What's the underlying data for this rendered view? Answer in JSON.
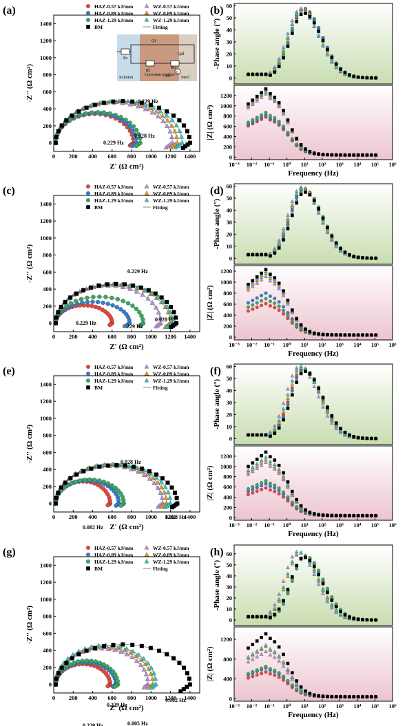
{
  "colors": {
    "HAZ-0.57": "#e8453c",
    "HAZ-0.89": "#2f7fd0",
    "HAZ-1.29": "#3aa860",
    "WZ-0.57": "#b48ee0",
    "WZ-0.89": "#e49a1a",
    "WZ-1.29": "#2cc7c7",
    "BM": "#000000",
    "phase_bg_top": "#ffffff",
    "phase_bg_bottom": "#c9ddb0",
    "mod_bg_top": "#ffffff",
    "mod_bg_bottom": "#ecc4cf"
  },
  "legend": {
    "HAZ-0.57": "HAZ-0.57 kJ/mm",
    "HAZ-0.89": "HAZ-0.89 kJ/mm",
    "HAZ-1.29": "HAZ-1.29 kJ/mm",
    "WZ-0.57": "WZ-0.57 kJ/mm",
    "WZ-0.89": "WZ-0.89 kJ/mm",
    "WZ-1.29": "WZ-1.29 kJ/mm",
    "BM": "BM",
    "fit": "Fitting"
  },
  "axes": {
    "nyquist_x": "Z' (Ω cm²)",
    "nyquist_y": "-Z'' (Ω cm²)",
    "phase_y": "-Phase angle (°)",
    "mod_y": "|Z| (Ω cm²)",
    "freq_x": "Frequency (Hz)"
  },
  "inset": {
    "components": [
      "Rs",
      "Qf",
      "Qdl",
      "Rf",
      "Rct",
      "RL",
      "L"
    ],
    "regions": [
      "Solution",
      "Corrosion product",
      "Steel"
    ]
  },
  "chart_data": [
    {
      "panel": "(a)",
      "type": "scatter",
      "xlabel": "Z' (Ω cm²)",
      "ylabel": "-Z'' (Ω cm²)",
      "xlim": [
        0,
        1500
      ],
      "ylim": [
        -100,
        1500
      ],
      "xticks": [
        0,
        200,
        400,
        600,
        800,
        1000,
        1200,
        1400
      ],
      "yticks": [
        0,
        200,
        400,
        600,
        800,
        1000,
        1200,
        1400
      ],
      "series": [
        {
          "name": "HAZ-0.57 kJ/mm",
          "R": 800,
          "H": 340,
          "tail": 60
        },
        {
          "name": "HAZ-0.89 kJ/mm",
          "R": 830,
          "H": 350,
          "tail": 70
        },
        {
          "name": "HAZ-1.29 kJ/mm",
          "R": 870,
          "H": 360,
          "tail": 70
        },
        {
          "name": "WZ-0.57 kJ/mm",
          "R": 1200,
          "H": 470,
          "tail": 110
        },
        {
          "name": "WZ-0.89 kJ/mm",
          "R": 1250,
          "H": 480,
          "tail": 110
        },
        {
          "name": "WZ-1.29 kJ/mm",
          "R": 1300,
          "H": 490,
          "tail": 110
        },
        {
          "name": "BM",
          "R": 1380,
          "H": 490,
          "tail": 120
        }
      ],
      "annotations": [
        "0.229 Hz",
        "0.229 Hz",
        "0.028 Hz"
      ]
    },
    {
      "panel": "(b)",
      "type": "scatter",
      "phase": {
        "ylabel": "-Phase angle (°)",
        "ylim": [
          -5,
          62
        ],
        "yticks": [
          0,
          10,
          20,
          30,
          40,
          50,
          60
        ],
        "series": [
          {
            "name": "HAZ-0.57 kJ/mm",
            "peak": 57,
            "peak_log_f": 0.95
          },
          {
            "name": "HAZ-0.89 kJ/mm",
            "peak": 58,
            "peak_log_f": 0.95
          },
          {
            "name": "HAZ-1.29 kJ/mm",
            "peak": 57,
            "peak_log_f": 0.9
          },
          {
            "name": "WZ-0.57 kJ/mm",
            "peak": 57,
            "peak_log_f": 0.75
          },
          {
            "name": "WZ-0.89 kJ/mm",
            "peak": 58,
            "peak_log_f": 0.85
          },
          {
            "name": "WZ-1.29 kJ/mm",
            "peak": 56,
            "peak_log_f": 0.8
          },
          {
            "name": "BM",
            "peak": 54,
            "peak_log_f": 0.95
          }
        ]
      },
      "modulus": {
        "ylabel": "|Z| (Ω cm²)",
        "ylim": [
          -50,
          1400
        ],
        "yticks": [
          0,
          200,
          400,
          600,
          800,
          1000,
          1200
        ],
        "xlabel": "Frequency (Hz)",
        "xlim_log": [
          -3,
          6
        ],
        "xticks": [
          "10⁻³",
          "10⁻²",
          "10⁻¹",
          "10⁰",
          "10¹",
          "10²",
          "10³",
          "10⁴",
          "10⁵",
          "10⁶"
        ],
        "series": [
          {
            "name": "HAZ-0.57 kJ/mm",
            "Zmax": 780
          },
          {
            "name": "HAZ-0.89 kJ/mm",
            "Zmax": 820
          },
          {
            "name": "HAZ-1.29 kJ/mm",
            "Zmax": 870
          },
          {
            "name": "WZ-0.57 kJ/mm",
            "Zmax": 1230
          },
          {
            "name": "WZ-0.89 kJ/mm",
            "Zmax": 1270
          },
          {
            "name": "WZ-1.29 kJ/mm",
            "Zmax": 1300
          },
          {
            "name": "BM",
            "Zmax": 1330
          }
        ]
      }
    },
    {
      "panel": "(c)",
      "type": "scatter",
      "xlabel": "Z' (Ω cm²)",
      "ylabel": "-Z'' (Ω cm²)",
      "xlim": [
        0,
        1500
      ],
      "ylim": [
        -100,
        1500
      ],
      "xticks": [
        0,
        200,
        400,
        600,
        800,
        1000,
        1200,
        1400
      ],
      "yticks": [
        0,
        200,
        400,
        600,
        800,
        1000,
        1200,
        1400
      ],
      "series": [
        {
          "name": "HAZ-0.57 kJ/mm",
          "R": 580,
          "H": 210,
          "tail": 40
        },
        {
          "name": "HAZ-0.89 kJ/mm",
          "R": 760,
          "H": 250,
          "tail": 50
        },
        {
          "name": "HAZ-1.29 kJ/mm",
          "R": 900,
          "H": 310,
          "tail": 60
        },
        {
          "name": "WZ-0.57 kJ/mm",
          "R": 1080,
          "H": 440,
          "tail": 80
        },
        {
          "name": "WZ-0.89 kJ/mm",
          "R": 1180,
          "H": 450,
          "tail": 90
        },
        {
          "name": "WZ-1.29 kJ/mm",
          "R": 1200,
          "H": 460,
          "tail": 90
        },
        {
          "name": "BM",
          "R": 1240,
          "H": 460,
          "tail": 90
        }
      ],
      "annotations": [
        "0.229 Hz",
        "0.229 Hz",
        "0.229 Hz",
        "0.028 Hz"
      ]
    },
    {
      "panel": "(d)",
      "type": "scatter",
      "phase": {
        "ylabel": "-Phase angle (°)",
        "ylim": [
          -5,
          62
        ],
        "yticks": [
          0,
          10,
          20,
          30,
          40,
          50,
          60
        ],
        "series": [
          {
            "name": "HAZ-0.57 kJ/mm",
            "peak": 58,
            "peak_log_f": 0.9
          },
          {
            "name": "HAZ-0.89 kJ/mm",
            "peak": 58,
            "peak_log_f": 0.95
          },
          {
            "name": "HAZ-1.29 kJ/mm",
            "peak": 57,
            "peak_log_f": 1.0
          },
          {
            "name": "WZ-0.57 kJ/mm",
            "peak": 59,
            "peak_log_f": 0.8
          },
          {
            "name": "WZ-0.89 kJ/mm",
            "peak": 59,
            "peak_log_f": 0.9
          },
          {
            "name": "WZ-1.29 kJ/mm",
            "peak": 58,
            "peak_log_f": 0.85
          },
          {
            "name": "BM",
            "peak": 55,
            "peak_log_f": 1.0
          }
        ]
      },
      "modulus": {
        "ylabel": "|Z| (Ω cm²)",
        "ylim": [
          -50,
          1300
        ],
        "yticks": [
          0,
          200,
          400,
          600,
          800,
          1000,
          1200
        ],
        "xlabel": "Frequency (Hz)",
        "xlim_log": [
          -3,
          6
        ],
        "xticks": [
          "10⁻³",
          "10⁻²",
          "10⁻¹",
          "10⁰",
          "10¹",
          "10²",
          "10³",
          "10⁴",
          "10⁵",
          "10⁶"
        ],
        "series": [
          {
            "name": "HAZ-0.57 kJ/mm",
            "Zmax": 610
          },
          {
            "name": "HAZ-0.89 kJ/mm",
            "Zmax": 800
          },
          {
            "name": "HAZ-1.29 kJ/mm",
            "Zmax": 700
          },
          {
            "name": "WZ-0.57 kJ/mm",
            "Zmax": 1100
          },
          {
            "name": "WZ-0.89 kJ/mm",
            "Zmax": 1150
          },
          {
            "name": "WZ-1.29 kJ/mm",
            "Zmax": 1190
          },
          {
            "name": "BM",
            "Zmax": 1230
          }
        ]
      }
    },
    {
      "panel": "(e)",
      "type": "scatter",
      "xlabel": "Z' (Ω cm²)",
      "ylabel": "-Z'' (Ω cm²)",
      "xlim": [
        0,
        1500
      ],
      "ylim": [
        -100,
        1500
      ],
      "xticks": [
        0,
        200,
        400,
        600,
        800,
        1000,
        1200,
        1400
      ],
      "yticks": [
        0,
        200,
        400,
        600,
        800,
        1000,
        1200,
        1400
      ],
      "series": [
        {
          "name": "HAZ-0.57 kJ/mm",
          "R": 560,
          "H": 260,
          "tail": 40
        },
        {
          "name": "HAZ-0.89 kJ/mm",
          "R": 650,
          "H": 270,
          "tail": 50
        },
        {
          "name": "HAZ-1.29 kJ/mm",
          "R": 700,
          "H": 280,
          "tail": 50
        },
        {
          "name": "WZ-0.57 kJ/mm",
          "R": 1100,
          "H": 440,
          "tail": 80
        },
        {
          "name": "WZ-0.89 kJ/mm",
          "R": 1140,
          "H": 450,
          "tail": 80
        },
        {
          "name": "WZ-1.29 kJ/mm",
          "R": 1180,
          "H": 460,
          "tail": 90
        },
        {
          "name": "BM",
          "R": 1250,
          "H": 450,
          "tail": 90
        }
      ],
      "annotations": [
        "0.028 Hz",
        "0.082 Hz",
        "0.028 Hz"
      ]
    },
    {
      "panel": "(f)",
      "type": "scatter",
      "phase": {
        "ylabel": "-Phase angle (°)",
        "ylim": [
          -5,
          62
        ],
        "yticks": [
          0,
          10,
          20,
          30,
          40,
          50,
          60
        ],
        "series": [
          {
            "name": "HAZ-0.57 kJ/mm",
            "peak": 58,
            "peak_log_f": 0.9
          },
          {
            "name": "HAZ-0.89 kJ/mm",
            "peak": 58,
            "peak_log_f": 0.95
          },
          {
            "name": "HAZ-1.29 kJ/mm",
            "peak": 57,
            "peak_log_f": 1.0
          },
          {
            "name": "WZ-0.57 kJ/mm",
            "peak": 60,
            "peak_log_f": 0.7
          },
          {
            "name": "WZ-0.89 kJ/mm",
            "peak": 59,
            "peak_log_f": 0.85
          },
          {
            "name": "WZ-1.29 kJ/mm",
            "peak": 60,
            "peak_log_f": 0.8
          },
          {
            "name": "BM",
            "peak": 56,
            "peak_log_f": 1.0
          }
        ]
      },
      "modulus": {
        "ylabel": "|Z| (Ω cm²)",
        "ylim": [
          -50,
          1400
        ],
        "yticks": [
          0,
          200,
          400,
          600,
          800,
          1000,
          1200
        ],
        "xlabel": "Frequency (Hz)",
        "xlim_log": [
          -3,
          6
        ],
        "xticks": [
          "10⁻³",
          "10⁻²",
          "10⁻¹",
          "10⁰",
          "10¹",
          "10²",
          "10³",
          "10⁴",
          "10⁵",
          "10⁶"
        ],
        "series": [
          {
            "name": "HAZ-0.57 kJ/mm",
            "Zmax": 580
          },
          {
            "name": "HAZ-0.89 kJ/mm",
            "Zmax": 660
          },
          {
            "name": "HAZ-1.29 kJ/mm",
            "Zmax": 720
          },
          {
            "name": "WZ-0.57 kJ/mm",
            "Zmax": 1080
          },
          {
            "name": "WZ-0.89 kJ/mm",
            "Zmax": 1130
          },
          {
            "name": "WZ-1.29 kJ/mm",
            "Zmax": 1180
          },
          {
            "name": "BM",
            "Zmax": 1280
          }
        ]
      }
    },
    {
      "panel": "(g)",
      "type": "scatter",
      "xlabel": "Z' (Ω cm²)",
      "ylabel": "-Z'' (Ω cm²)",
      "xlim": [
        0,
        1500
      ],
      "ylim": [
        -100,
        1500
      ],
      "xticks": [
        0,
        200,
        400,
        600,
        800,
        1000,
        1200,
        1400
      ],
      "yticks": [
        0,
        200,
        400,
        600,
        800,
        1000,
        1200,
        1400
      ],
      "series": [
        {
          "name": "HAZ-0.57 kJ/mm",
          "R": 560,
          "H": 240,
          "tail": 40
        },
        {
          "name": "HAZ-0.89 kJ/mm",
          "R": 620,
          "H": 260,
          "tail": 50
        },
        {
          "name": "HAZ-1.29 kJ/mm",
          "R": 640,
          "H": 280,
          "tail": 50
        },
        {
          "name": "WZ-0.57 kJ/mm",
          "R": 950,
          "H": 420,
          "tail": 70
        },
        {
          "name": "WZ-0.89 kJ/mm",
          "R": 1000,
          "H": 440,
          "tail": 80
        },
        {
          "name": "WZ-1.29 kJ/mm",
          "R": 1030,
          "H": 460,
          "tail": 80
        },
        {
          "name": "BM",
          "R": 1380,
          "H": 470,
          "tail": 160
        }
      ],
      "annotations": [
        "0.229 Hz",
        "0.229 Hz",
        "0.005 Hz",
        "0.082 Hz"
      ]
    },
    {
      "panel": "(h)",
      "type": "scatter",
      "phase": {
        "ylabel": "-Phase angle (°)",
        "ylim": [
          -5,
          68
        ],
        "yticks": [
          0,
          10,
          20,
          30,
          40,
          50,
          60
        ],
        "series": [
          {
            "name": "HAZ-0.57 kJ/mm",
            "peak": 58,
            "peak_log_f": 1.0
          },
          {
            "name": "HAZ-0.89 kJ/mm",
            "peak": 58,
            "peak_log_f": 1.0
          },
          {
            "name": "HAZ-1.29 kJ/mm",
            "peak": 58,
            "peak_log_f": 1.05
          },
          {
            "name": "WZ-0.57 kJ/mm",
            "peak": 62,
            "peak_log_f": 0.6
          },
          {
            "name": "WZ-0.89 kJ/mm",
            "peak": 61,
            "peak_log_f": 0.75
          },
          {
            "name": "WZ-1.29 kJ/mm",
            "peak": 61,
            "peak_log_f": 0.7
          },
          {
            "name": "BM",
            "peak": 57,
            "peak_log_f": 0.95
          }
        ]
      },
      "modulus": {
        "ylabel": "|Z| (Ω cm²)",
        "ylim": [
          -50,
          1450
        ],
        "yticks": [
          0,
          400,
          800,
          1200
        ],
        "xlabel": "Frequency (Hz)",
        "xlim_log": [
          -3,
          6
        ],
        "xticks": [
          "10⁻³",
          "10⁻²",
          "10⁻¹",
          "10⁰",
          "10¹",
          "10²",
          "10³",
          "10⁴",
          "10⁵",
          "10⁶"
        ],
        "series": [
          {
            "name": "HAZ-0.57 kJ/mm",
            "Zmax": 540
          },
          {
            "name": "HAZ-0.89 kJ/mm",
            "Zmax": 620
          },
          {
            "name": "HAZ-1.29 kJ/mm",
            "Zmax": 650
          },
          {
            "name": "WZ-0.57 kJ/mm",
            "Zmax": 950
          },
          {
            "name": "WZ-0.89 kJ/mm",
            "Zmax": 1050
          },
          {
            "name": "WZ-1.29 kJ/mm",
            "Zmax": 1080
          },
          {
            "name": "BM",
            "Zmax": 1310
          }
        ]
      }
    }
  ]
}
